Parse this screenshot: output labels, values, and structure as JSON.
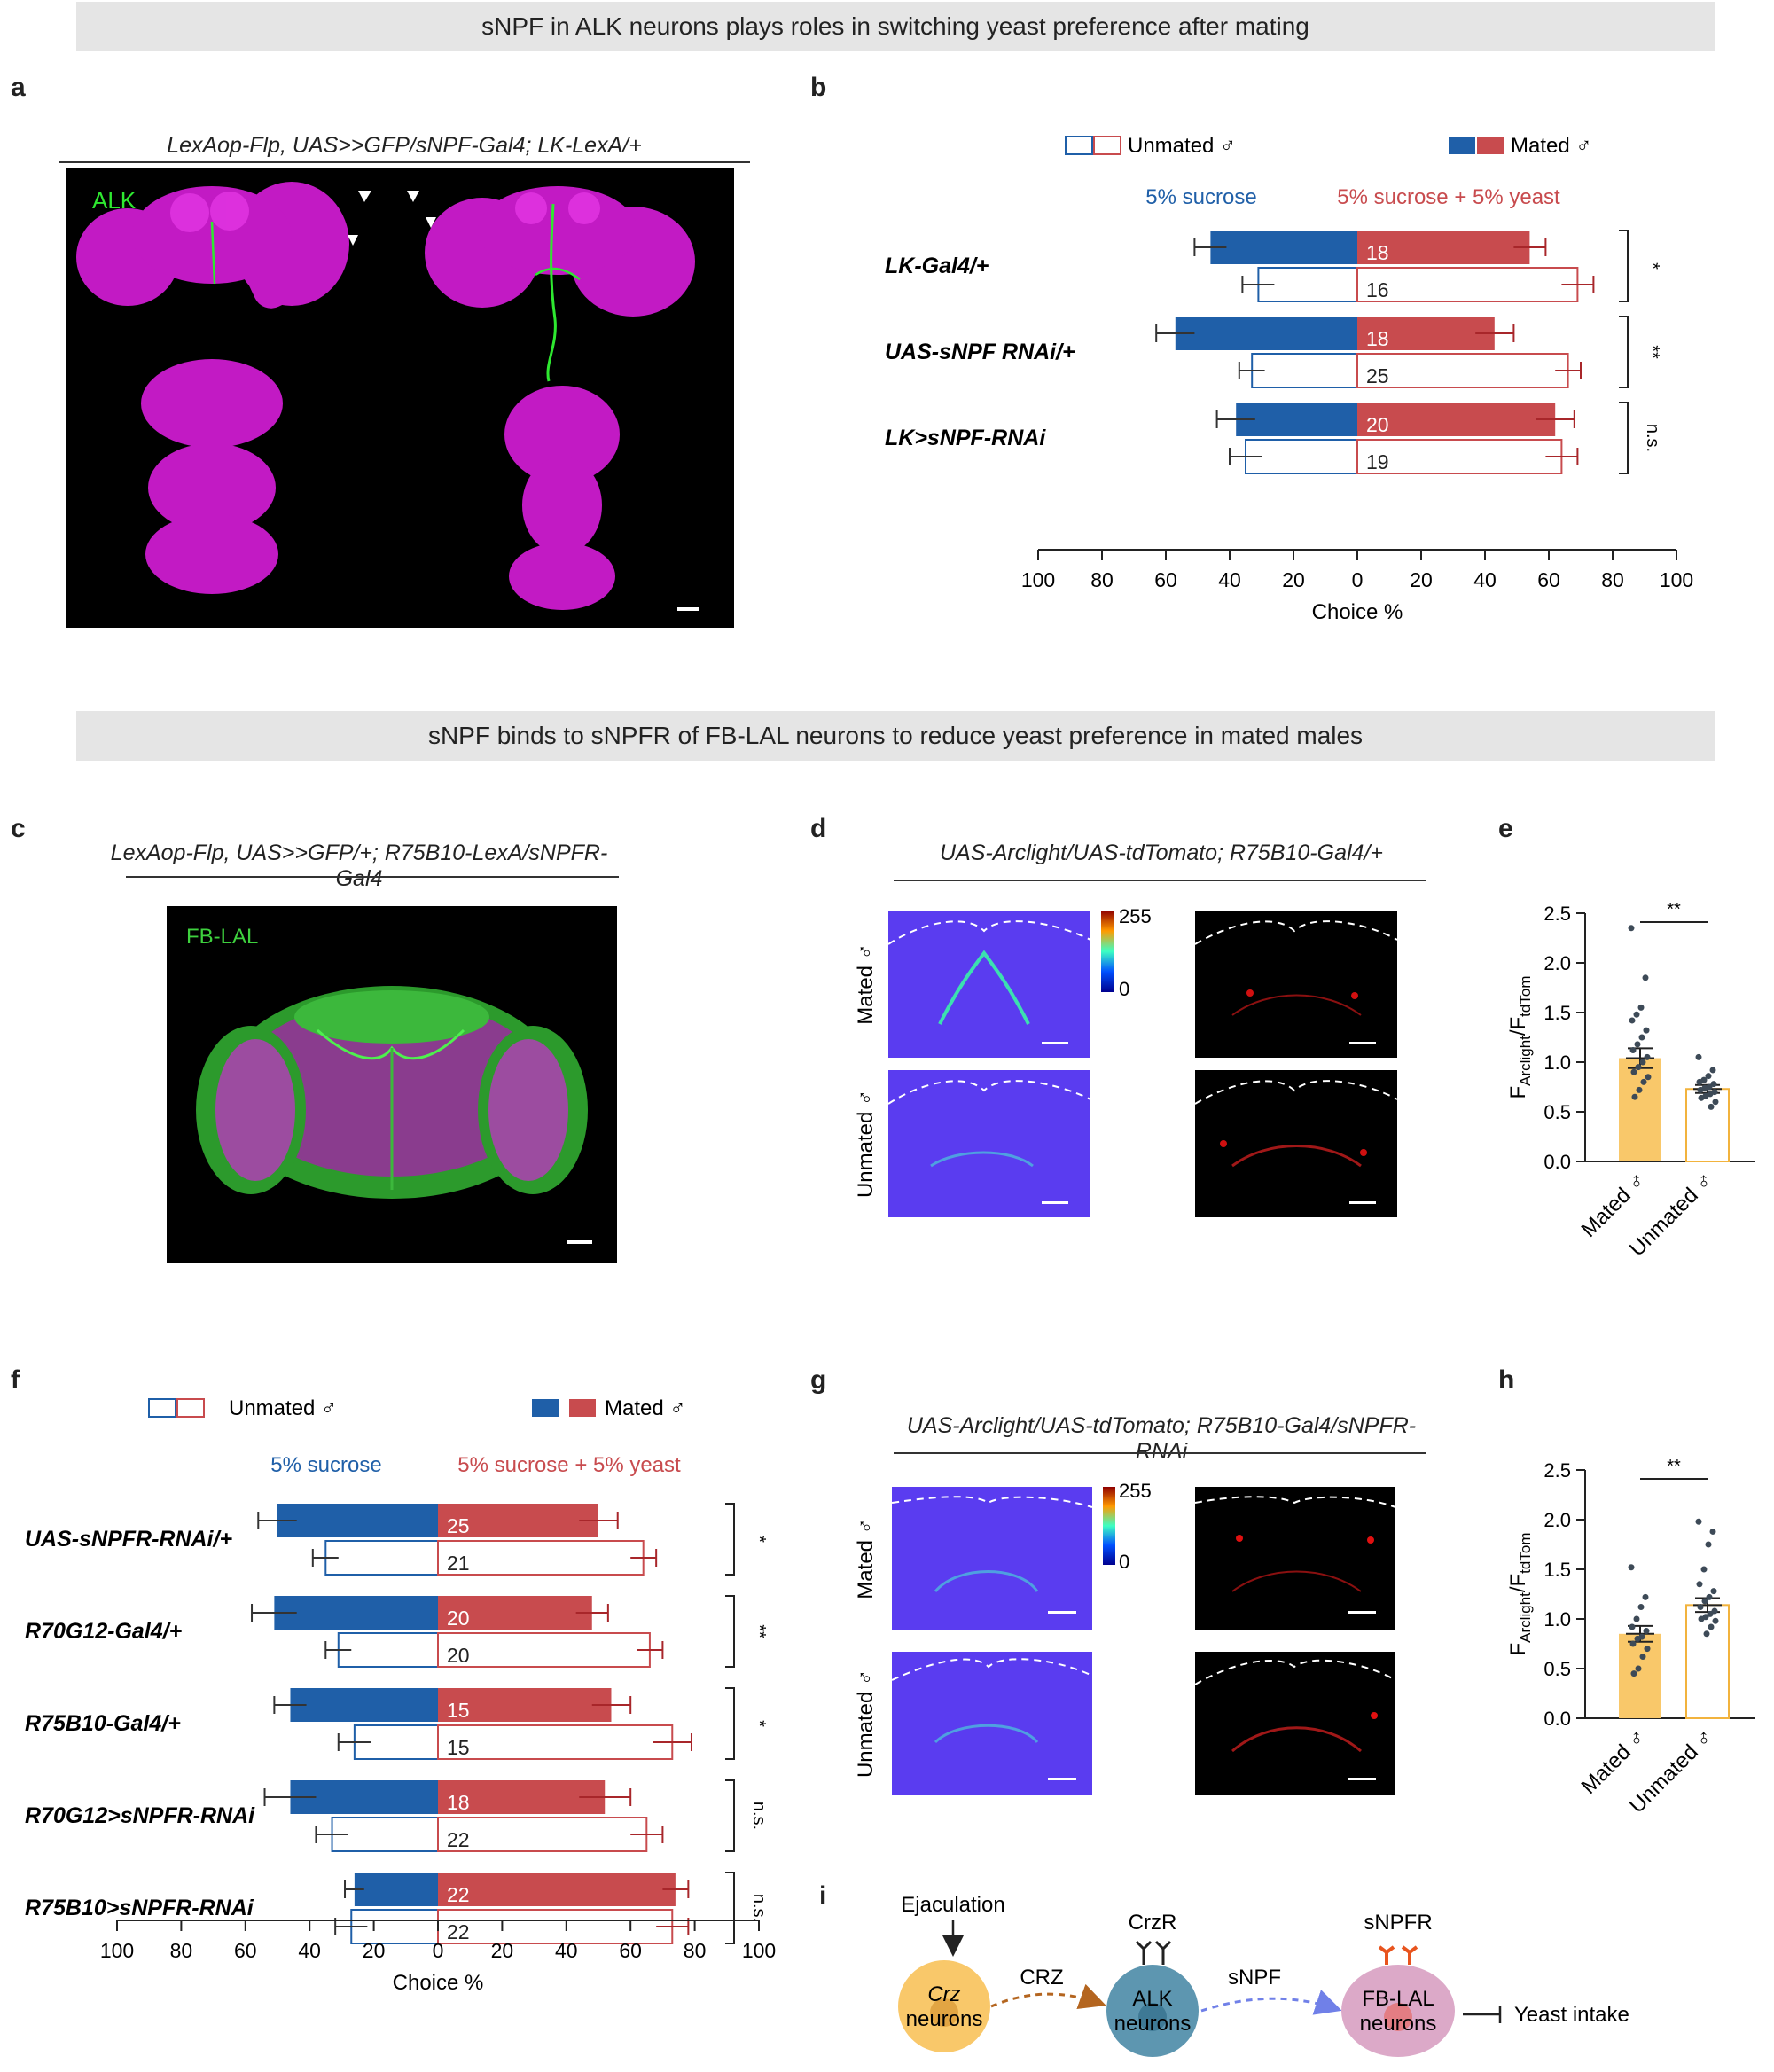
{
  "banners": {
    "top": "sNPF in ALK neurons plays roles in switching yeast preference after mating",
    "middle": "sNPF binds to sNPFR of FB-LAL neurons to reduce yeast preference in mated males"
  },
  "panel_labels": {
    "a": "a",
    "b": "b",
    "c": "c",
    "d": "d",
    "e": "e",
    "f": "f",
    "g": "g",
    "h": "h",
    "i": "i"
  },
  "panel_a": {
    "title": "LexAop-Flp, UAS>>GFP/sNPF-Gal4; LK-LexA/+",
    "label": "ALK"
  },
  "panel_c": {
    "title": "LexAop-Flp, UAS>>GFP/+; R75B10-LexA/sNPFR-Gal4",
    "label": "FB-LAL"
  },
  "panel_d": {
    "title": "UAS-Arclight/UAS-tdTomato; R75B10-Gal4/+",
    "row1": "Mated ♂",
    "row2": "Unmated ♂",
    "cbar_max": "255",
    "cbar_min": "0"
  },
  "panel_g": {
    "title": "UAS-Arclight/UAS-tdTomato; R75B10-Gal4/sNPFR-RNAi",
    "row1": "Mated ♂",
    "row2": "Unmated ♂",
    "cbar_max": "255",
    "cbar_min": "0"
  },
  "legend": {
    "unmated": "Unmated ♂",
    "mated": "Mated ♂",
    "left_food": "5% sucrose",
    "right_food": "5% sucrose + 5% yeast"
  },
  "colors": {
    "blue": "#1f5fa8",
    "red": "#c84b4e",
    "orange": "#f9c86a",
    "orange_edge": "#f2b33d",
    "dot": "#3d4a57"
  },
  "chart_data": [
    {
      "id": "b",
      "type": "bar",
      "orientation": "horizontal-diverging",
      "xlabel": "Choice %",
      "ticks": [
        "100",
        "80",
        "60",
        "40",
        "20",
        "0",
        "20",
        "40",
        "60",
        "80",
        "100"
      ],
      "groups": [
        {
          "label": "LK-Gal4/+",
          "mated": {
            "n": "18",
            "sucrose": 46,
            "sucrose_err": 5,
            "yeast": 54,
            "yeast_err": 5
          },
          "unmated": {
            "n": "16",
            "sucrose": 31,
            "sucrose_err": 5,
            "yeast": 69,
            "yeast_err": 5
          },
          "sig": "*"
        },
        {
          "label": "UAS-sNPF RNAi/+",
          "mated": {
            "n": "18",
            "sucrose": 57,
            "sucrose_err": 6,
            "yeast": 43,
            "yeast_err": 6
          },
          "unmated": {
            "n": "25",
            "sucrose": 33,
            "sucrose_err": 4,
            "yeast": 66,
            "yeast_err": 4
          },
          "sig": "**"
        },
        {
          "label": "LK>sNPF-RNAi",
          "mated": {
            "n": "20",
            "sucrose": 38,
            "sucrose_err": 6,
            "yeast": 62,
            "yeast_err": 6
          },
          "unmated": {
            "n": "19",
            "sucrose": 35,
            "sucrose_err": 5,
            "yeast": 64,
            "yeast_err": 5
          },
          "sig": "n.s."
        }
      ]
    },
    {
      "id": "f",
      "type": "bar",
      "orientation": "horizontal-diverging",
      "xlabel": "Choice %",
      "ticks": [
        "100",
        "80",
        "60",
        "40",
        "20",
        "0",
        "20",
        "40",
        "60",
        "80",
        "100"
      ],
      "groups": [
        {
          "label": "UAS-sNPFR-RNAi/+",
          "mated": {
            "n": "25",
            "sucrose": 50,
            "sucrose_err": 6,
            "yeast": 50,
            "yeast_err": 6
          },
          "unmated": {
            "n": "21",
            "sucrose": 35,
            "sucrose_err": 4,
            "yeast": 64,
            "yeast_err": 4
          },
          "sig": "*"
        },
        {
          "label": "R70G12-Gal4/+",
          "mated": {
            "n": "20",
            "sucrose": 51,
            "sucrose_err": 7,
            "yeast": 48,
            "yeast_err": 5
          },
          "unmated": {
            "n": "20",
            "sucrose": 31,
            "sucrose_err": 4,
            "yeast": 66,
            "yeast_err": 4
          },
          "sig": "**"
        },
        {
          "label": "R75B10-Gal4/+",
          "mated": {
            "n": "15",
            "sucrose": 46,
            "sucrose_err": 5,
            "yeast": 54,
            "yeast_err": 6
          },
          "unmated": {
            "n": "15",
            "sucrose": 26,
            "sucrose_err": 5,
            "yeast": 73,
            "yeast_err": 6
          },
          "sig": "*"
        },
        {
          "label": "R70G12>sNPFR-RNAi",
          "mated": {
            "n": "18",
            "sucrose": 46,
            "sucrose_err": 8,
            "yeast": 52,
            "yeast_err": 8
          },
          "unmated": {
            "n": "22",
            "sucrose": 33,
            "sucrose_err": 5,
            "yeast": 65,
            "yeast_err": 5
          },
          "sig": "n.s."
        },
        {
          "label": "R75B10>sNPFR-RNAi",
          "mated": {
            "n": "22",
            "sucrose": 26,
            "sucrose_err": 3,
            "yeast": 74,
            "yeast_err": 4
          },
          "unmated": {
            "n": "22",
            "sucrose": 27,
            "sucrose_err": 5,
            "yeast": 73,
            "yeast_err": 5
          },
          "sig": "n.s."
        }
      ]
    },
    {
      "id": "e",
      "type": "bar",
      "ylim": [
        0,
        2.5
      ],
      "ticks": [
        "0.0",
        "0.5",
        "1.0",
        "1.5",
        "2.0",
        "2.5"
      ],
      "ylabel_main": "F",
      "ylabel_sub1": "Arclight",
      "ylabel_sep": "/F",
      "ylabel_sub2": "tdTom",
      "categories": [
        "Mated ♂",
        "Unmated ♂"
      ],
      "values": [
        1.04,
        0.73
      ],
      "errors": [
        0.1,
        0.04
      ],
      "sig": "**",
      "points": [
        [
          2.35,
          1.85,
          1.55,
          1.48,
          1.42,
          1.32,
          1.25,
          1.18,
          1.12,
          1.05,
          1.0,
          0.95,
          0.9,
          0.85,
          0.8,
          0.72,
          0.65
        ],
        [
          1.05,
          0.92,
          0.86,
          0.82,
          0.8,
          0.78,
          0.75,
          0.74,
          0.72,
          0.7,
          0.68,
          0.66,
          0.64,
          0.6,
          0.55
        ]
      ]
    },
    {
      "id": "h",
      "type": "bar",
      "ylim": [
        0,
        2.5
      ],
      "ticks": [
        "0.0",
        "0.5",
        "1.0",
        "1.5",
        "2.0",
        "2.5"
      ],
      "ylabel_main": "F",
      "ylabel_sub1": "Arclight",
      "ylabel_sep": "/F",
      "ylabel_sub2": "tdTom",
      "categories": [
        "Mated ♂",
        "Unmated ♂"
      ],
      "values": [
        0.85,
        1.14
      ],
      "errors": [
        0.08,
        0.07
      ],
      "sig": "**",
      "points": [
        [
          1.52,
          1.22,
          1.12,
          1.0,
          0.92,
          0.88,
          0.82,
          0.8,
          0.75,
          0.7,
          0.62,
          0.5,
          0.45
        ],
        [
          1.98,
          1.88,
          1.75,
          1.5,
          1.35,
          1.28,
          1.22,
          1.18,
          1.12,
          1.08,
          1.05,
          1.02,
          1.0,
          0.98,
          0.92,
          0.85
        ]
      ]
    }
  ],
  "panel_i": {
    "ejaculation": "Ejaculation",
    "crz": "Crz",
    "crz_neurons": "neurons",
    "crz_arrow": "CRZ",
    "crzr": "CrzR",
    "alk": "ALK",
    "alk_neurons": "neurons",
    "snpf_arrow": "sNPF",
    "snpfr": "sNPFR",
    "fblal": "FB-LAL",
    "fblal_neurons": "neurons",
    "output": "Yeast intake"
  }
}
